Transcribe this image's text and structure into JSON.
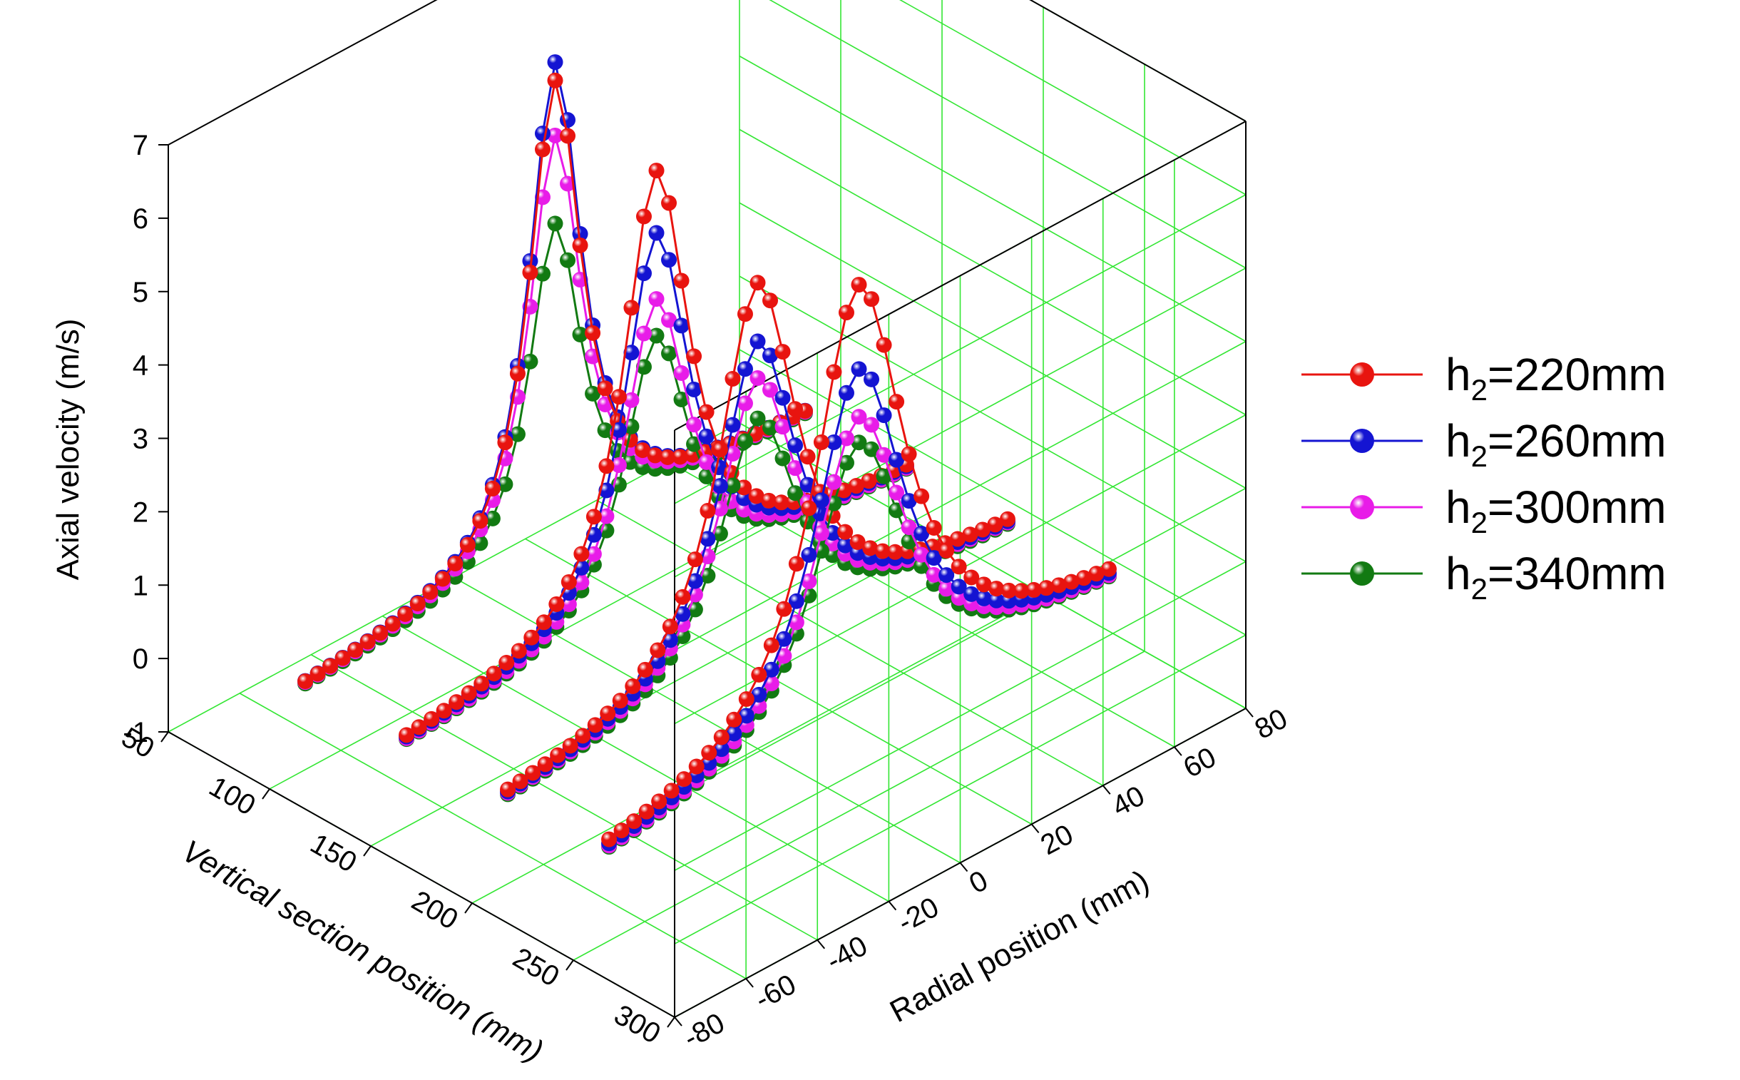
{
  "chart_data": {
    "type": "line",
    "subtype": "3d-scatter-line",
    "title": "",
    "axes": {
      "x": {
        "label": "Vertical section position (mm)",
        "range": [
          50,
          300
        ],
        "ticks": [
          "50",
          "100",
          "150",
          "200",
          "250",
          "300"
        ]
      },
      "y": {
        "label": "Radial position (mm)",
        "range": [
          -80,
          80
        ],
        "ticks": [
          "-80",
          "-60",
          "-40",
          "-20",
          "0",
          "20",
          "40",
          "60",
          "80"
        ]
      },
      "z": {
        "label": "Axial velocity (m/s)",
        "range": [
          -1,
          7
        ],
        "ticks": [
          "-1",
          "0",
          "1",
          "2",
          "3",
          "4",
          "5",
          "6",
          "7"
        ]
      }
    },
    "grid": true,
    "grid_color": "#33e633",
    "legend_position": "right",
    "sections_mm": [
      100,
      150,
      200,
      250
    ],
    "series": [
      {
        "name": "h2=220mm",
        "legend_main": "h",
        "legend_sub": "2",
        "legend_rest": "=220mm",
        "color": "#e8140f",
        "peaks": [
          6.55,
          6.1,
          5.35,
          6.1
        ]
      },
      {
        "name": "h2=260mm",
        "legend_main": "h",
        "legend_sub": "2",
        "legend_rest": "=260mm",
        "color": "#1414d2",
        "peaks": [
          6.8,
          5.25,
          4.55,
          4.95
        ]
      },
      {
        "name": "h2=300mm",
        "legend_main": "h",
        "legend_sub": "2",
        "legend_rest": "=300mm",
        "color": "#e81ce8",
        "peaks": [
          5.8,
          4.35,
          4.05,
          4.3
        ]
      },
      {
        "name": "h2=340mm",
        "legend_main": "h",
        "legend_sub": "2",
        "legend_rest": "=340mm",
        "color": "#127a12",
        "peaks": [
          4.6,
          3.85,
          3.5,
          3.95
        ]
      }
    ]
  }
}
